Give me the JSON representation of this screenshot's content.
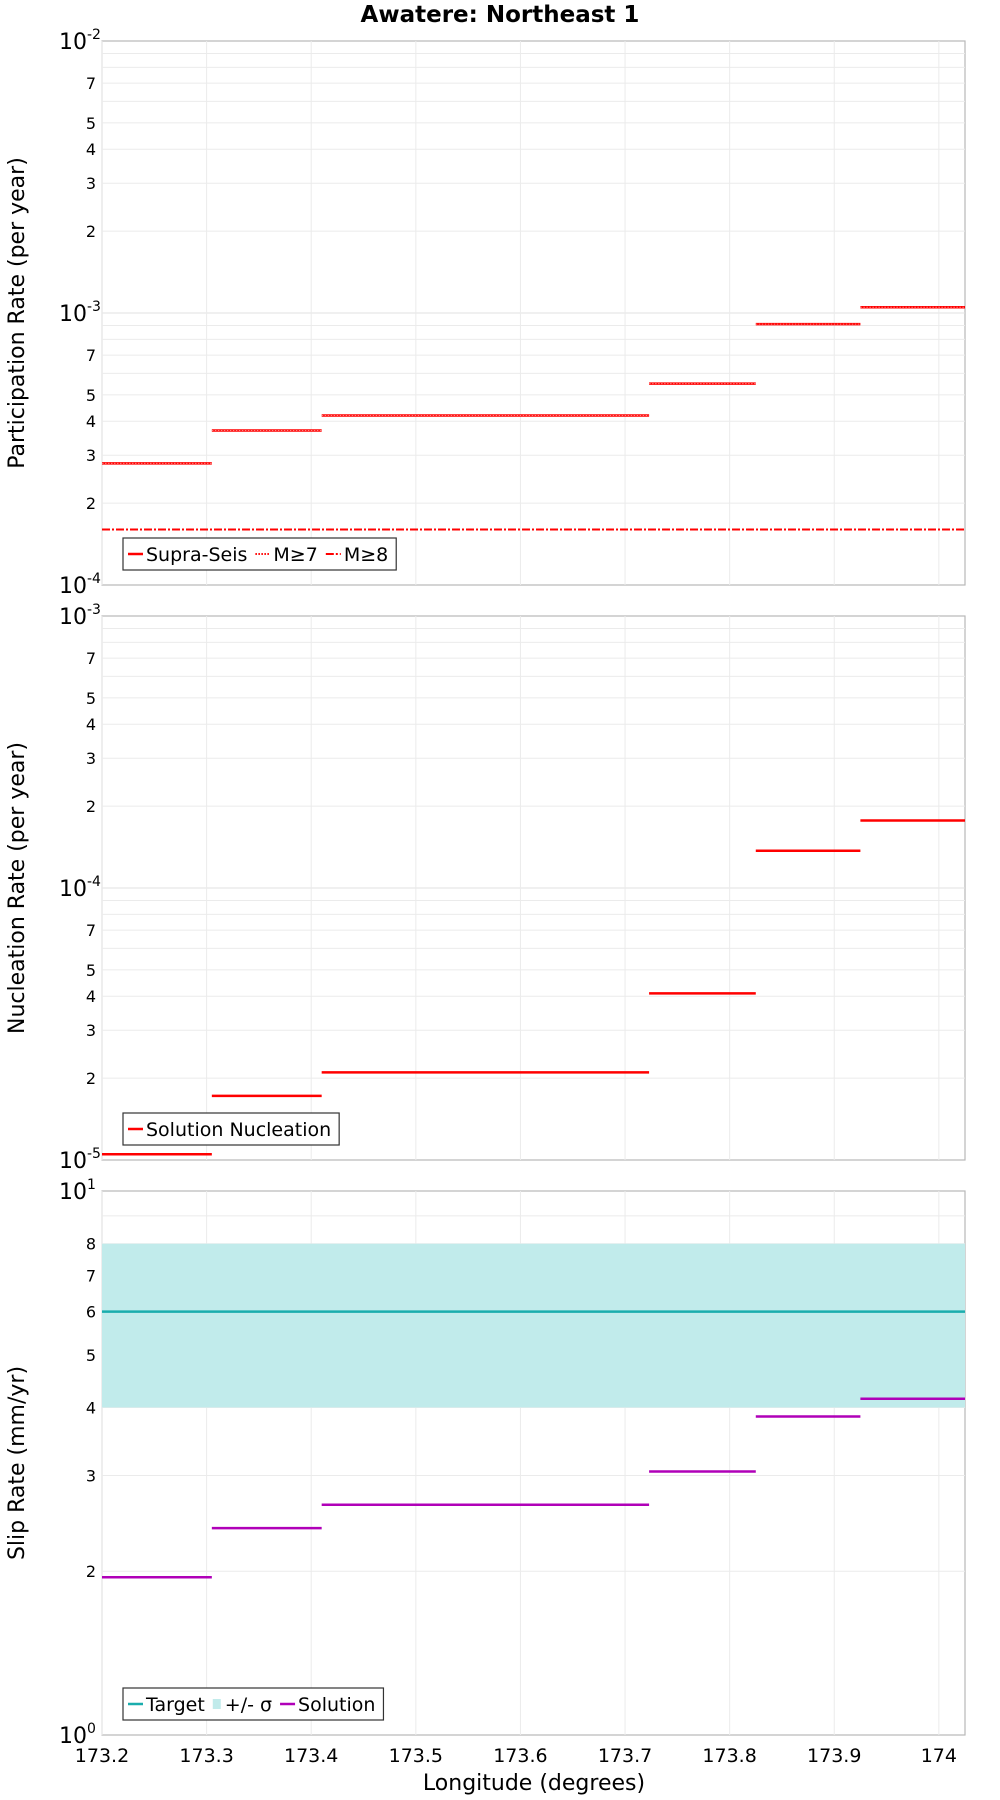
{
  "chart_data": {
    "title": "Awatere: Northeast 1",
    "xlabel": "Longitude (degrees)",
    "xlim": [
      173.2,
      174.025
    ],
    "x_ticks": [
      "173.2",
      "173.3",
      "173.4",
      "173.5",
      "173.6",
      "173.7",
      "173.8",
      "173.9",
      "174"
    ],
    "segments": [
      [
        173.2,
        173.305
      ],
      [
        173.305,
        173.41
      ],
      [
        173.41,
        173.723
      ],
      [
        173.723,
        173.825
      ],
      [
        173.825,
        173.925
      ],
      [
        173.925,
        174.025
      ]
    ],
    "panels": [
      {
        "type": "line",
        "ylabel": "Participation Rate (per year)",
        "yscale": "log",
        "ylim": [
          0.0001,
          0.01
        ],
        "major_ticks": [
          {
            "base": "10",
            "exp": "-4"
          },
          {
            "base": "10",
            "exp": "-3"
          },
          {
            "base": "10",
            "exp": "-2"
          }
        ],
        "minor_tick_labels": [
          "2",
          "3",
          "4",
          "5",
          "7"
        ],
        "legend": [
          "Supra-Seis",
          "M≥7",
          "M≥8"
        ],
        "series": [
          {
            "name": "Supra-Seis",
            "color": "#ff0000",
            "values": [
              0.00028,
              0.00037,
              0.00042,
              0.00055,
              0.00091,
              0.00105
            ]
          },
          {
            "name": "M≥7",
            "color": "#ff0000",
            "values": [
              0.00028,
              0.00037,
              0.00042,
              0.00055,
              0.00091,
              0.00105
            ]
          },
          {
            "name": "M≥8",
            "color": "#ff0000",
            "values": [
              0.00016,
              0.00016,
              0.00016,
              0.00016,
              0.00016,
              0.00016
            ]
          }
        ]
      },
      {
        "type": "line",
        "ylabel": "Nucleation Rate (per year)",
        "yscale": "log",
        "ylim": [
          1e-05,
          0.001
        ],
        "major_ticks": [
          {
            "base": "10",
            "exp": "-5"
          },
          {
            "base": "10",
            "exp": "-4"
          },
          {
            "base": "10",
            "exp": "-3"
          }
        ],
        "minor_tick_labels": [
          "2",
          "3",
          "4",
          "5",
          "7"
        ],
        "legend": [
          "Solution Nucleation"
        ],
        "series": [
          {
            "name": "Solution Nucleation",
            "color": "#ff0000",
            "values": [
              1.05e-05,
              1.72e-05,
              2.1e-05,
              4.1e-05,
              0.000137,
              0.000177
            ]
          }
        ]
      },
      {
        "type": "line",
        "ylabel": "Slip Rate (mm/yr)",
        "yscale": "log",
        "ylim": [
          1,
          10
        ],
        "major_ticks": [
          {
            "base": "10",
            "exp": "0"
          },
          {
            "base": "10",
            "exp": "1"
          }
        ],
        "minor_tick_labels": [
          "2",
          "3",
          "4",
          "5",
          "6",
          "7",
          "8"
        ],
        "legend": [
          "Target",
          "+/- σ",
          "Solution"
        ],
        "band": {
          "name": "+/- σ",
          "color": "#c1ebeb",
          "low": 4.0,
          "high": 8.0
        },
        "target": {
          "name": "Target",
          "color": "#1aadad",
          "value": 6.0
        },
        "series": [
          {
            "name": "Solution",
            "color": "#b000b8",
            "values": [
              1.95,
              2.4,
              2.65,
              3.05,
              3.85,
              4.15
            ]
          }
        ]
      }
    ]
  }
}
